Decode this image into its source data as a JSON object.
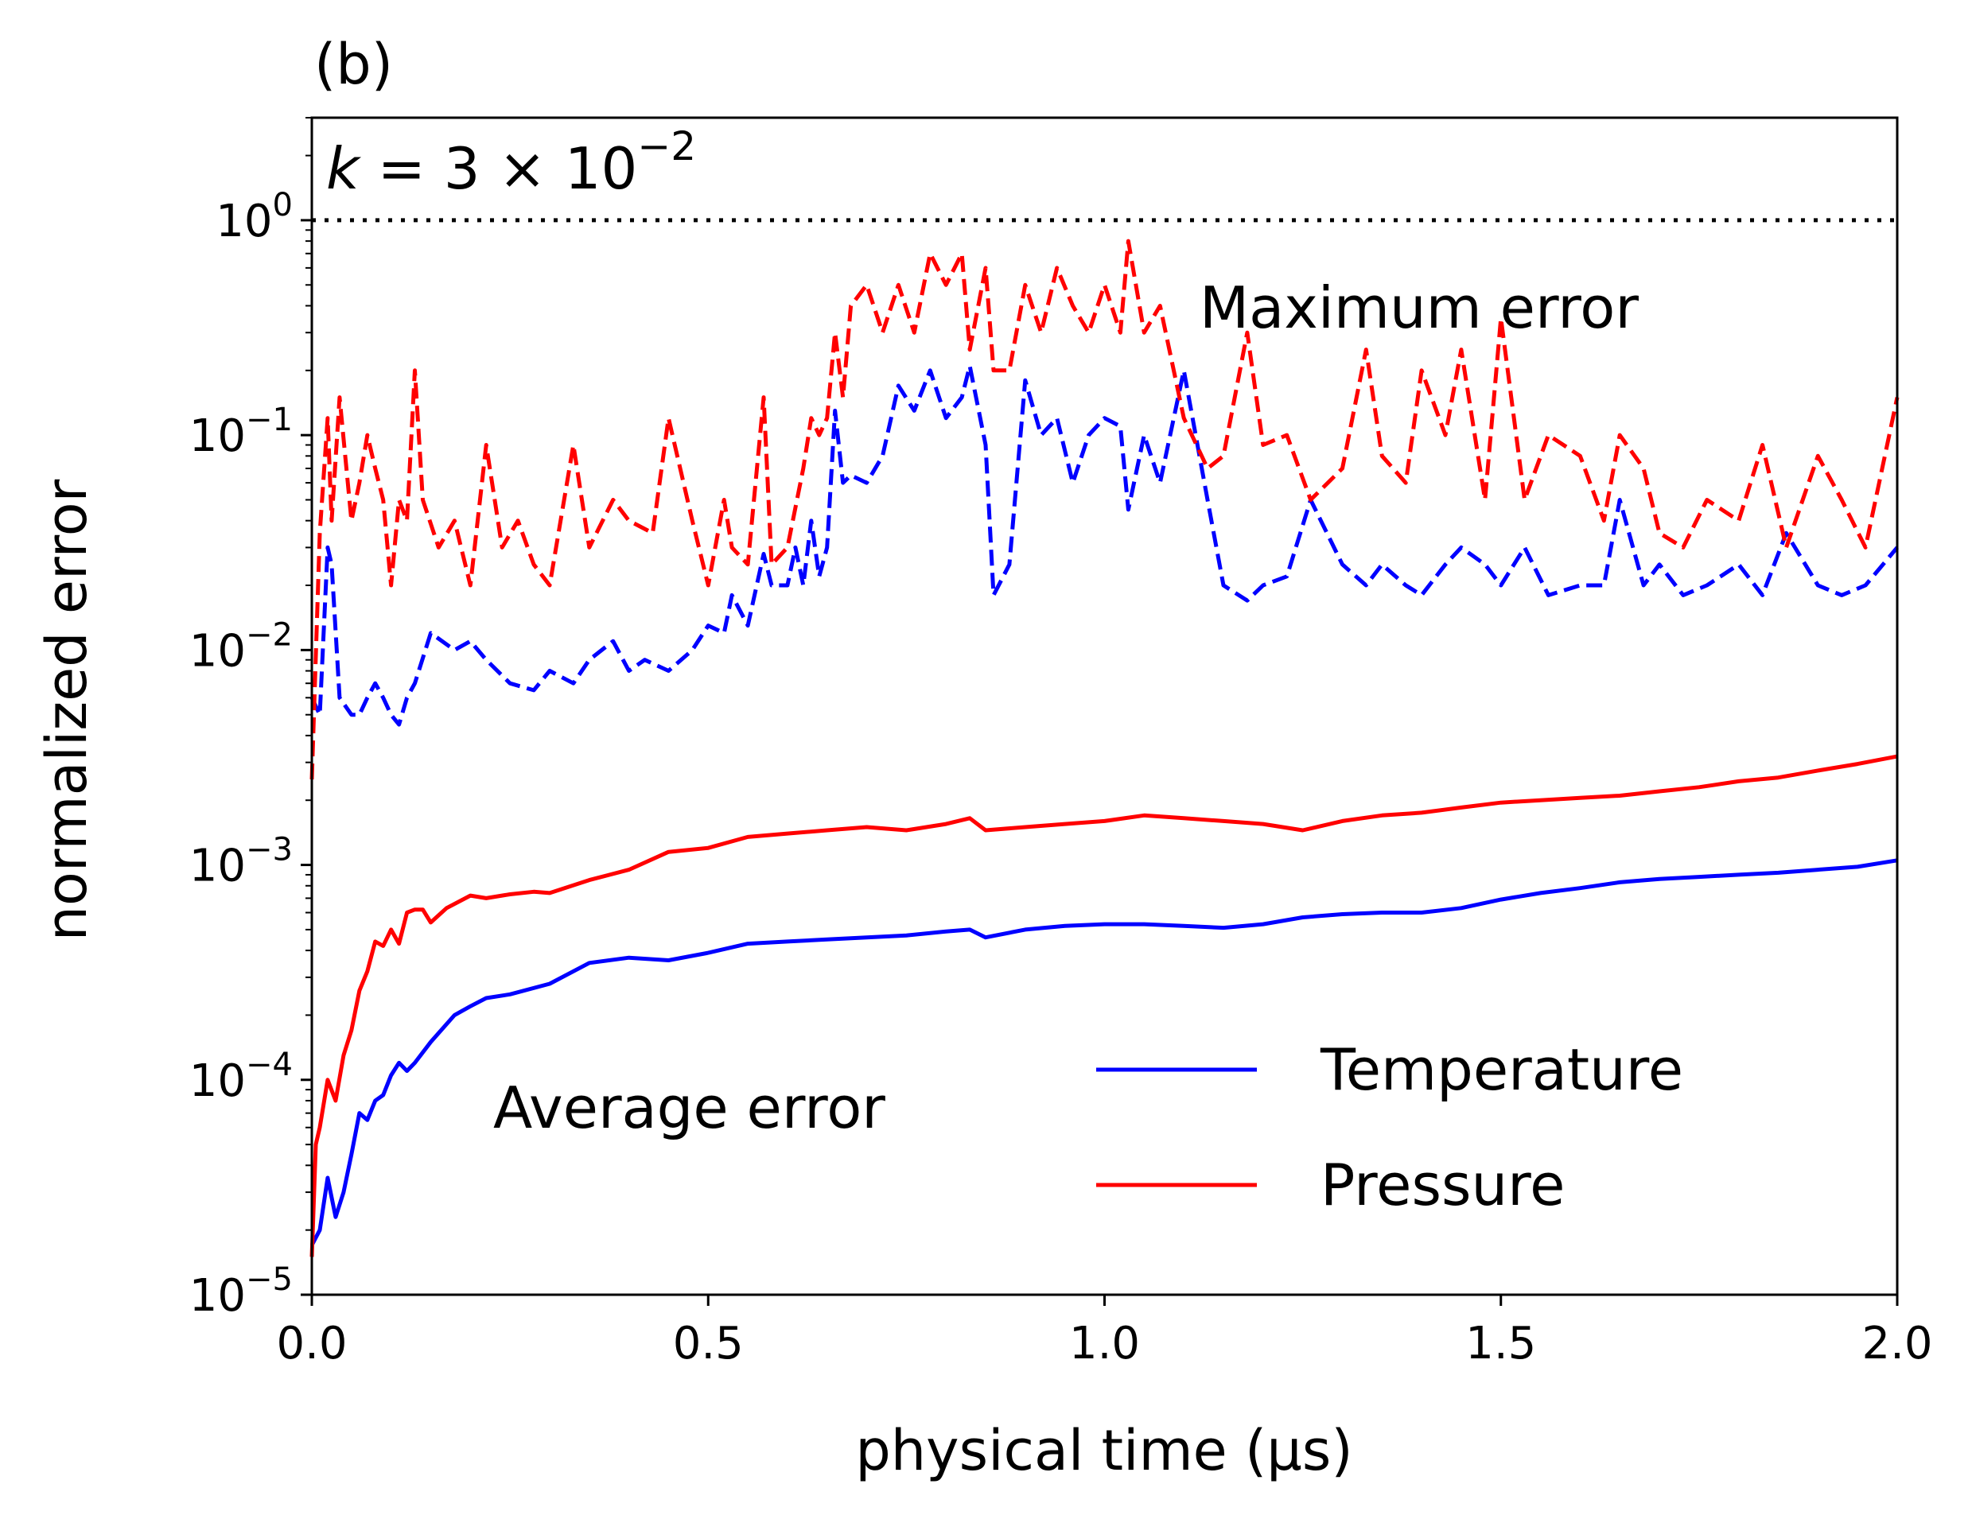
{
  "chart_data": {
    "type": "line",
    "panel_label": "(b)",
    "title": "",
    "xlabel": "physical time (μs)",
    "ylabel": "normalized error",
    "xlim": [
      0.0,
      2.0
    ],
    "ylim": [
      1e-05,
      3.0
    ],
    "y_scale": "log",
    "grid": false,
    "legend_position": "lower-right",
    "x_ticks": [
      "0.0",
      "0.5",
      "1.0",
      "1.5",
      "2.0"
    ],
    "y_ticks": [
      {
        "value": 1e-05,
        "base": "10",
        "exp": "−5"
      },
      {
        "value": 0.0001,
        "base": "10",
        "exp": "−4"
      },
      {
        "value": 0.001,
        "base": "10",
        "exp": "−3"
      },
      {
        "value": 0.01,
        "base": "10",
        "exp": "−2"
      },
      {
        "value": 0.1,
        "base": "10",
        "exp": "−1"
      },
      {
        "value": 1,
        "base": "10",
        "exp": "0"
      }
    ],
    "annotations": {
      "k_prefix": "k",
      "k_middle": " = 3 × 10",
      "k_exp": "−2",
      "maximum_error": "Maximum error",
      "average_error": "Average error"
    },
    "reference_line": {
      "y": 1.0,
      "style": "dotted",
      "color": "#000000"
    },
    "series": [
      {
        "name": "Temperature",
        "stat": "average",
        "color": "#0000ff",
        "style": "solid",
        "x": [
          0.0,
          0.01,
          0.02,
          0.03,
          0.04,
          0.05,
          0.06,
          0.07,
          0.08,
          0.09,
          0.1,
          0.11,
          0.12,
          0.13,
          0.15,
          0.18,
          0.2,
          0.22,
          0.25,
          0.3,
          0.35,
          0.4,
          0.45,
          0.5,
          0.55,
          0.6,
          0.65,
          0.7,
          0.75,
          0.8,
          0.83,
          0.85,
          0.9,
          0.95,
          1.0,
          1.05,
          1.1,
          1.15,
          1.2,
          1.25,
          1.3,
          1.35,
          1.4,
          1.45,
          1.5,
          1.55,
          1.6,
          1.65,
          1.7,
          1.75,
          1.8,
          1.85,
          1.9,
          1.95,
          2.0
        ],
        "y": [
          1.7e-05,
          2e-05,
          3.5e-05,
          2.3e-05,
          3e-05,
          4.5e-05,
          7e-05,
          6.5e-05,
          8e-05,
          8.5e-05,
          0.000105,
          0.00012,
          0.00011,
          0.00012,
          0.00015,
          0.0002,
          0.00022,
          0.00024,
          0.00025,
          0.00028,
          0.00035,
          0.00037,
          0.00036,
          0.00039,
          0.00043,
          0.00044,
          0.00045,
          0.00046,
          0.00047,
          0.00049,
          0.0005,
          0.00046,
          0.0005,
          0.00052,
          0.00053,
          0.00053,
          0.00052,
          0.00051,
          0.00053,
          0.00057,
          0.00059,
          0.0006,
          0.0006,
          0.00063,
          0.00069,
          0.00074,
          0.00078,
          0.00083,
          0.00086,
          0.00088,
          0.0009,
          0.00092,
          0.00095,
          0.00098,
          0.00105
        ]
      },
      {
        "name": "Pressure",
        "stat": "average",
        "color": "#ff0000",
        "style": "solid",
        "x": [
          0.0,
          0.005,
          0.01,
          0.02,
          0.03,
          0.04,
          0.05,
          0.06,
          0.07,
          0.08,
          0.09,
          0.1,
          0.11,
          0.12,
          0.13,
          0.14,
          0.15,
          0.17,
          0.2,
          0.22,
          0.25,
          0.28,
          0.3,
          0.35,
          0.4,
          0.45,
          0.5,
          0.55,
          0.6,
          0.65,
          0.7,
          0.75,
          0.8,
          0.83,
          0.85,
          0.9,
          0.95,
          1.0,
          1.05,
          1.1,
          1.15,
          1.2,
          1.25,
          1.3,
          1.35,
          1.4,
          1.45,
          1.5,
          1.55,
          1.6,
          1.65,
          1.7,
          1.75,
          1.8,
          1.85,
          1.9,
          1.95,
          2.0
        ],
        "y": [
          1.5e-05,
          5e-05,
          6e-05,
          0.0001,
          8e-05,
          0.00013,
          0.00017,
          0.00026,
          0.00032,
          0.00044,
          0.00042,
          0.0005,
          0.00043,
          0.0006,
          0.00062,
          0.00062,
          0.00054,
          0.00063,
          0.00072,
          0.0007,
          0.00073,
          0.00075,
          0.00074,
          0.00085,
          0.00095,
          0.00115,
          0.0012,
          0.00135,
          0.0014,
          0.00145,
          0.0015,
          0.00145,
          0.00155,
          0.00165,
          0.00145,
          0.0015,
          0.00155,
          0.0016,
          0.0017,
          0.00165,
          0.0016,
          0.00155,
          0.00145,
          0.0016,
          0.0017,
          0.00175,
          0.00185,
          0.00195,
          0.002,
          0.00205,
          0.0021,
          0.0022,
          0.0023,
          0.00245,
          0.00255,
          0.00275,
          0.00295,
          0.0032
        ]
      },
      {
        "name": "Temperature",
        "stat": "maximum",
        "color": "#0000ff",
        "style": "dashed",
        "x": [
          0.0,
          0.01,
          0.02,
          0.025,
          0.035,
          0.05,
          0.06,
          0.07,
          0.08,
          0.09,
          0.1,
          0.11,
          0.12,
          0.13,
          0.15,
          0.18,
          0.2,
          0.22,
          0.25,
          0.28,
          0.3,
          0.33,
          0.35,
          0.38,
          0.4,
          0.42,
          0.45,
          0.48,
          0.5,
          0.52,
          0.53,
          0.55,
          0.57,
          0.58,
          0.6,
          0.61,
          0.62,
          0.63,
          0.64,
          0.65,
          0.66,
          0.67,
          0.68,
          0.7,
          0.72,
          0.74,
          0.76,
          0.78,
          0.8,
          0.82,
          0.83,
          0.85,
          0.86,
          0.88,
          0.9,
          0.92,
          0.94,
          0.96,
          0.98,
          1.0,
          1.02,
          1.03,
          1.05,
          1.07,
          1.1,
          1.13,
          1.15,
          1.18,
          1.2,
          1.23,
          1.26,
          1.3,
          1.33,
          1.35,
          1.38,
          1.4,
          1.43,
          1.45,
          1.48,
          1.5,
          1.53,
          1.56,
          1.6,
          1.63,
          1.65,
          1.68,
          1.7,
          1.73,
          1.76,
          1.8,
          1.83,
          1.86,
          1.9,
          1.93,
          1.96,
          2.0
        ],
        "y": [
          0.006,
          0.005,
          0.03,
          0.025,
          0.006,
          0.005,
          0.005,
          0.006,
          0.007,
          0.006,
          0.005,
          0.0045,
          0.006,
          0.007,
          0.012,
          0.01,
          0.011,
          0.009,
          0.007,
          0.0065,
          0.008,
          0.007,
          0.009,
          0.011,
          0.008,
          0.009,
          0.008,
          0.01,
          0.013,
          0.012,
          0.018,
          0.013,
          0.028,
          0.02,
          0.02,
          0.03,
          0.02,
          0.04,
          0.022,
          0.03,
          0.13,
          0.06,
          0.065,
          0.06,
          0.08,
          0.17,
          0.13,
          0.2,
          0.12,
          0.15,
          0.21,
          0.09,
          0.018,
          0.025,
          0.18,
          0.1,
          0.12,
          0.06,
          0.1,
          0.12,
          0.11,
          0.045,
          0.1,
          0.06,
          0.2,
          0.05,
          0.02,
          0.017,
          0.02,
          0.022,
          0.05,
          0.025,
          0.02,
          0.025,
          0.02,
          0.018,
          0.025,
          0.03,
          0.025,
          0.02,
          0.03,
          0.018,
          0.02,
          0.02,
          0.05,
          0.02,
          0.025,
          0.018,
          0.02,
          0.025,
          0.018,
          0.035,
          0.02,
          0.018,
          0.02,
          0.03
        ]
      },
      {
        "name": "Pressure",
        "stat": "maximum",
        "color": "#ff0000",
        "style": "dashed",
        "x": [
          0.0,
          0.01,
          0.02,
          0.025,
          0.035,
          0.05,
          0.06,
          0.07,
          0.08,
          0.09,
          0.1,
          0.11,
          0.12,
          0.13,
          0.14,
          0.16,
          0.18,
          0.2,
          0.22,
          0.24,
          0.26,
          0.28,
          0.3,
          0.33,
          0.35,
          0.38,
          0.4,
          0.43,
          0.45,
          0.48,
          0.5,
          0.52,
          0.53,
          0.55,
          0.57,
          0.58,
          0.6,
          0.62,
          0.63,
          0.64,
          0.65,
          0.66,
          0.67,
          0.68,
          0.7,
          0.72,
          0.74,
          0.76,
          0.78,
          0.8,
          0.82,
          0.83,
          0.85,
          0.86,
          0.88,
          0.9,
          0.92,
          0.94,
          0.96,
          0.98,
          1.0,
          1.02,
          1.03,
          1.05,
          1.07,
          1.1,
          1.13,
          1.15,
          1.18,
          1.2,
          1.23,
          1.26,
          1.3,
          1.33,
          1.35,
          1.38,
          1.4,
          1.43,
          1.45,
          1.48,
          1.5,
          1.53,
          1.56,
          1.6,
          1.63,
          1.65,
          1.68,
          1.7,
          1.73,
          1.76,
          1.8,
          1.83,
          1.86,
          1.9,
          1.93,
          1.96,
          2.0
        ],
        "y": [
          0.0025,
          0.035,
          0.12,
          0.04,
          0.15,
          0.04,
          0.06,
          0.1,
          0.07,
          0.05,
          0.02,
          0.05,
          0.04,
          0.2,
          0.05,
          0.03,
          0.04,
          0.02,
          0.09,
          0.03,
          0.04,
          0.025,
          0.02,
          0.09,
          0.03,
          0.05,
          0.04,
          0.035,
          0.12,
          0.04,
          0.02,
          0.05,
          0.03,
          0.025,
          0.15,
          0.025,
          0.03,
          0.07,
          0.12,
          0.1,
          0.12,
          0.3,
          0.15,
          0.4,
          0.5,
          0.3,
          0.5,
          0.3,
          0.7,
          0.5,
          0.7,
          0.25,
          0.6,
          0.2,
          0.2,
          0.5,
          0.3,
          0.6,
          0.4,
          0.3,
          0.5,
          0.3,
          0.8,
          0.3,
          0.4,
          0.12,
          0.07,
          0.08,
          0.3,
          0.09,
          0.1,
          0.05,
          0.07,
          0.25,
          0.08,
          0.06,
          0.2,
          0.1,
          0.25,
          0.05,
          0.35,
          0.05,
          0.1,
          0.08,
          0.04,
          0.1,
          0.07,
          0.035,
          0.03,
          0.05,
          0.04,
          0.09,
          0.03,
          0.08,
          0.05,
          0.03,
          0.15
        ]
      }
    ],
    "legend": [
      {
        "label": "Temperature",
        "color": "#0000ff"
      },
      {
        "label": "Pressure",
        "color": "#ff0000"
      }
    ]
  }
}
